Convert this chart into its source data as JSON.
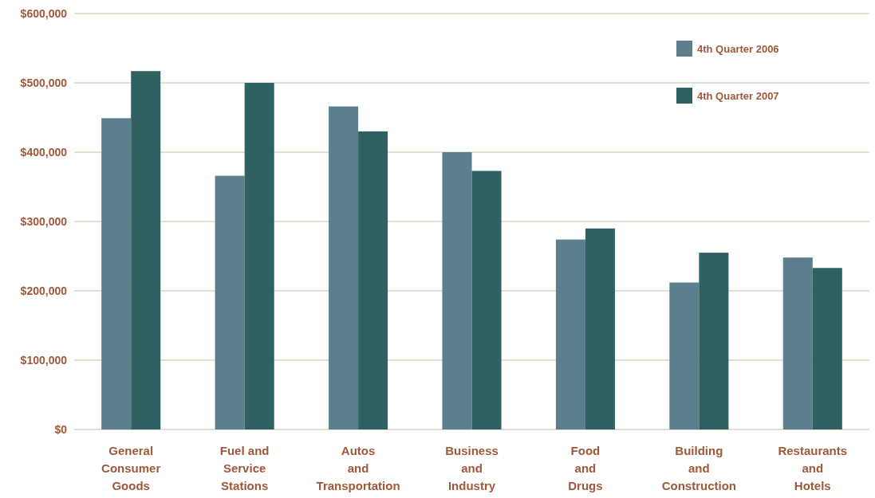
{
  "chart_data": {
    "type": "bar",
    "categories": [
      "General\nConsumer\nGoods",
      "Fuel and\nService\nStations",
      "Autos\nand\nTransportation",
      "Business\nand\nIndustry",
      "Food\nand\nDrugs",
      "Building\nand\nConstruction",
      "Restaurants\nand\nHotels"
    ],
    "series": [
      {
        "name": "4th Quarter 2006",
        "color": "#5b7f8c",
        "values": [
          449000,
          366000,
          466000,
          400000,
          274000,
          212000,
          248000
        ]
      },
      {
        "name": "4th Quarter 2007",
        "color": "#2f6163",
        "values": [
          517000,
          500000,
          430000,
          373000,
          290000,
          255000,
          233000
        ]
      }
    ],
    "ylim": [
      0,
      600000
    ],
    "yticks": [
      {
        "value": 0,
        "label": "$0"
      },
      {
        "value": 100000,
        "label": "$100,000"
      },
      {
        "value": 200000,
        "label": "$200,000"
      },
      {
        "value": 300000,
        "label": "$300,000"
      },
      {
        "value": 400000,
        "label": "$400,000"
      },
      {
        "value": 500000,
        "label": "$500,000"
      },
      {
        "value": 600000,
        "label": "$600,000"
      }
    ],
    "grid": "y",
    "legend": "top right"
  }
}
